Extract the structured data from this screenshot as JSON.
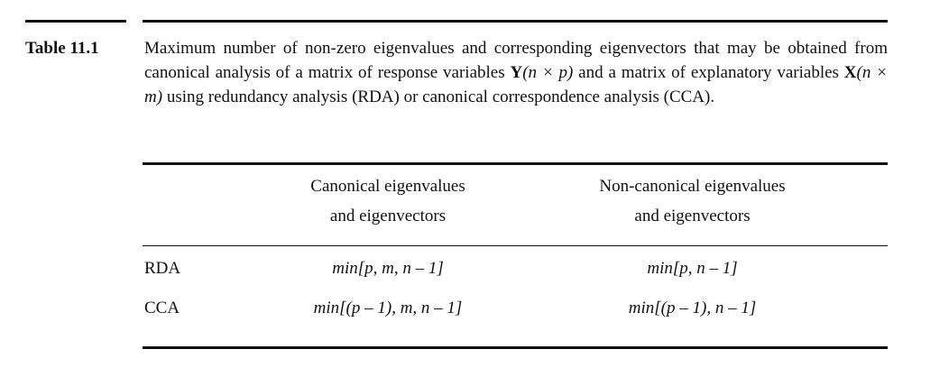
{
  "table_label": "Table 11.1",
  "caption": {
    "part1": "Maximum number of non-zero eigenvalues and corresponding eigenvectors that may be obtained from canonical analysis of a matrix of response variables ",
    "y_symbol": "Y",
    "y_dims": "(n × p)",
    "part2": " and a matrix of explanatory variables ",
    "x_symbol": "X",
    "x_dims": "(n × m)",
    "part3": " using redundancy analysis (RDA) or canonical correspondence analysis (CCA)."
  },
  "table": {
    "headers": {
      "canonical_line1": "Canonical eigenvalues",
      "canonical_line2": "and eigenvectors",
      "noncanonical_line1": "Non-canonical eigenvalues",
      "noncanonical_line2": "and eigenvectors"
    },
    "rows": [
      {
        "label": "RDA",
        "canonical": "min[p, m, n – 1]",
        "noncanonical": "min[p, n – 1]"
      },
      {
        "label": "CCA",
        "canonical": "min[(p – 1), m, n – 1]",
        "noncanonical": "min[(p – 1), n – 1]"
      }
    ]
  }
}
